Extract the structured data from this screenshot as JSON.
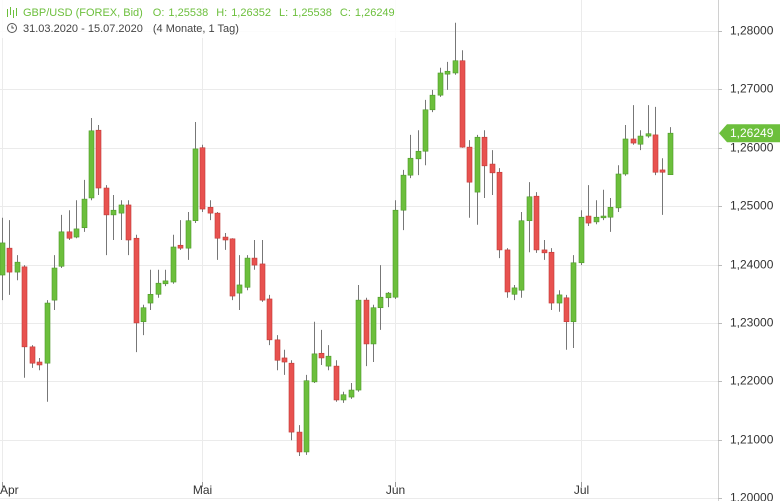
{
  "chart_data": {
    "type": "candlestick",
    "header": {
      "instrument": "GBP/USD (FOREX, Bid)",
      "ohlc": [
        {
          "key": "O:",
          "value": "1,25538"
        },
        {
          "key": "H:",
          "value": "1,26352"
        },
        {
          "key": "L:",
          "value": "1,25538"
        },
        {
          "key": "C:",
          "value": "1,26249"
        }
      ],
      "range": "31.03.2020 - 15.07.2020",
      "duration": "(4 Monate, 1 Tag)"
    },
    "categories": [
      "Apr",
      null,
      null,
      null,
      null,
      null,
      null,
      null,
      null,
      null,
      null,
      null,
      null,
      null,
      null,
      null,
      null,
      null,
      null,
      null,
      null,
      null,
      null,
      null,
      null,
      null,
      null,
      "Mai",
      null,
      null,
      null,
      null,
      null,
      null,
      null,
      null,
      null,
      null,
      null,
      null,
      null,
      null,
      null,
      null,
      null,
      null,
      null,
      null,
      null,
      null,
      null,
      null,
      null,
      "Jun",
      null,
      null,
      null,
      null,
      null,
      null,
      null,
      null,
      null,
      null,
      null,
      null,
      null,
      null,
      null,
      null,
      null,
      null,
      null,
      null,
      null,
      null,
      null,
      null,
      "Jul",
      null,
      null,
      null,
      null,
      null,
      null,
      null,
      null,
      null,
      null,
      null,
      null
    ],
    "open": [
      1.2382,
      1.2428,
      1.2387,
      1.2396,
      1.2259,
      1.2233,
      1.2231,
      1.2339,
      1.2397,
      1.2456,
      1.2447,
      1.2463,
      1.2514,
      1.263,
      1.2531,
      1.2485,
      1.2488,
      1.2502,
      1.2445,
      1.2302,
      1.2334,
      1.2349,
      1.2367,
      1.237,
      1.2433,
      1.2428,
      1.2475,
      1.26,
      1.2498,
      1.2488,
      1.2447,
      1.2444,
      1.2351,
      1.2361,
      1.2411,
      1.2401,
      1.2341,
      1.2271,
      1.224,
      1.2231,
      1.2113,
      1.2079,
      1.2199,
      1.2248,
      1.2226,
      1.2226,
      1.2168,
      1.2173,
      1.2185,
      1.2339,
      1.2264,
      1.2326,
      1.2343,
      1.2344,
      1.2493,
      1.2553,
      1.2581,
      1.2594,
      1.2665,
      1.269,
      1.2726,
      1.2728,
      1.2749,
      1.2601,
      1.2524,
      1.2618,
      1.2572,
      1.2558,
      1.2425,
      1.2349,
      1.2356,
      1.2475,
      1.2517,
      1.2425,
      1.2421,
      1.2334,
      1.2343,
      1.2302,
      1.2403,
      1.2483,
      1.2473,
      1.248,
      1.2481,
      1.2497,
      1.2555,
      1.2615,
      1.2606,
      1.262,
      1.2622,
      1.2562,
      1.25538
    ],
    "high": [
      1.248,
      1.2476,
      1.2416,
      1.2399,
      1.2262,
      1.224,
      1.2339,
      1.2416,
      1.2485,
      1.2493,
      1.251,
      1.2545,
      1.2651,
      1.2639,
      1.2536,
      1.2519,
      1.251,
      1.251,
      1.2451,
      1.2331,
      1.2391,
      1.2391,
      1.2391,
      1.2451,
      1.2476,
      1.249,
      1.2644,
      1.2605,
      1.251,
      1.249,
      1.2454,
      1.2445,
      1.2416,
      1.2416,
      1.2442,
      1.2442,
      1.2348,
      1.2279,
      1.2254,
      1.2236,
      1.2125,
      1.2211,
      1.2302,
      1.2288,
      1.2262,
      1.2236,
      1.2182,
      1.2197,
      1.2365,
      1.2343,
      1.2331,
      1.2399,
      1.2353,
      1.251,
      1.2562,
      1.2622,
      1.263,
      1.2682,
      1.2699,
      1.2737,
      1.2747,
      1.2814,
      1.2767,
      1.2613,
      1.2622,
      1.263,
      1.2596,
      1.2565,
      1.2428,
      1.2365,
      1.249,
      1.2541,
      1.2524,
      1.2442,
      1.2428,
      1.2356,
      1.2348,
      1.2416,
      1.2493,
      1.2536,
      1.251,
      1.2528,
      1.2514,
      1.257,
      1.2639,
      1.2673,
      1.263,
      1.2673,
      1.267,
      1.2582,
      1.26352
    ],
    "low": [
      1.2339,
      1.2348,
      1.2373,
      1.2206,
      1.2223,
      1.2219,
      1.2165,
      1.2322,
      1.2394,
      1.2442,
      1.2445,
      1.2456,
      1.251,
      1.2519,
      1.2416,
      1.2442,
      1.2442,
      1.2416,
      1.225,
      1.2279,
      1.2322,
      1.2343,
      1.2363,
      1.2367,
      1.2425,
      1.2408,
      1.2471,
      1.249,
      1.2476,
      1.2408,
      1.2425,
      1.2339,
      1.2322,
      1.2356,
      1.2391,
      1.2336,
      1.2262,
      1.2219,
      1.2211,
      1.2099,
      1.2072,
      1.2074,
      1.2197,
      1.2228,
      1.2219,
      1.2165,
      1.2163,
      1.217,
      1.2182,
      1.2226,
      1.2233,
      1.2288,
      1.2327,
      1.2341,
      1.2459,
      1.2548,
      1.2553,
      1.257,
      1.2661,
      1.2687,
      1.2699,
      1.2725,
      1.26,
      1.248,
      1.2468,
      1.2514,
      1.2519,
      1.2411,
      1.2343,
      1.2339,
      1.2343,
      1.2421,
      1.242,
      1.2408,
      1.2322,
      1.2319,
      1.2254,
      1.2257,
      1.2399,
      1.2466,
      1.2469,
      1.2476,
      1.2456,
      1.249,
      1.2552,
      1.2605,
      1.2596,
      1.2617,
      1.2553,
      1.2485,
      1.25538
    ],
    "close": [
      1.2437,
      1.2387,
      1.2404,
      1.2259,
      1.2231,
      1.2228,
      1.2334,
      1.2394,
      1.2456,
      1.2445,
      1.2461,
      1.2512,
      1.2629,
      1.2531,
      1.2485,
      1.2493,
      1.2502,
      1.2442,
      1.23,
      1.2326,
      1.2349,
      1.2368,
      1.2372,
      1.243,
      1.2428,
      1.2475,
      1.2598,
      1.2495,
      1.2488,
      1.2445,
      1.2442,
      1.2346,
      1.2365,
      1.2411,
      1.2399,
      1.2339,
      1.2271,
      1.2236,
      1.2233,
      1.2113,
      1.2079,
      1.2201,
      1.2247,
      1.224,
      1.2243,
      1.2168,
      1.2177,
      1.2185,
      1.2339,
      1.2264,
      1.2326,
      1.2344,
      1.2351,
      1.2493,
      1.2553,
      1.2582,
      1.2594,
      1.2665,
      1.269,
      1.2728,
      1.2731,
      1.2749,
      1.2601,
      1.2541,
      1.2618,
      1.2569,
      1.2557,
      1.2425,
      1.2353,
      1.236,
      1.2475,
      1.2516,
      1.2425,
      1.242,
      1.2334,
      1.2348,
      1.2302,
      1.2403,
      1.2481,
      1.2471,
      1.2481,
      1.2483,
      1.2498,
      1.2555,
      1.2615,
      1.2608,
      1.262,
      1.2624,
      1.2558,
      1.2558,
      1.26249
    ],
    "up_color": "#6cbf3c",
    "down_color": "#e8524f",
    "ylim": [
      1.1995,
      1.2853
    ],
    "yticks": [
      {
        "value": 1.2,
        "label": "1,20000"
      },
      {
        "value": 1.21,
        "label": "1,21000"
      },
      {
        "value": 1.22,
        "label": "1,22000"
      },
      {
        "value": 1.23,
        "label": "1,23000"
      },
      {
        "value": 1.24,
        "label": "1,24000"
      },
      {
        "value": 1.25,
        "label": "1,25000"
      },
      {
        "value": 1.26,
        "label": "1,26000"
      },
      {
        "value": 1.27,
        "label": "1,27000"
      },
      {
        "value": 1.28,
        "label": "1,28000"
      }
    ],
    "last_price": {
      "value": 1.26249,
      "label": "1,26249"
    },
    "grid": true
  }
}
